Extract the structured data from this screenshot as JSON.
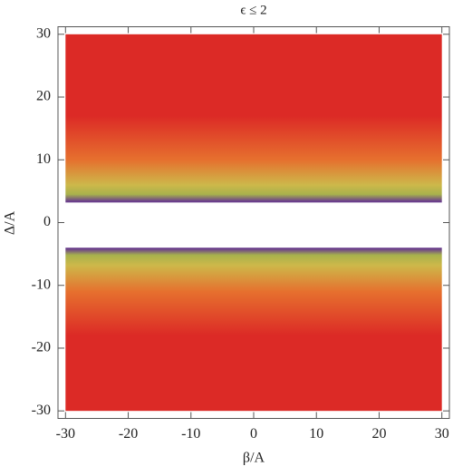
{
  "chart_data": {
    "type": "region",
    "title": "ϵ ≤ 2",
    "x_label": "β/A",
    "y_label": "Δ/A",
    "xlim": [
      -31.2,
      31.2
    ],
    "ylim": [
      -31.2,
      31.2
    ],
    "xticks": [
      -30,
      -20,
      -10,
      0,
      10,
      20,
      30
    ],
    "yticks": [
      -30,
      -20,
      -10,
      0,
      10,
      20,
      30
    ],
    "colors": [
      "#6a3e8c",
      "#a8b24c",
      "#cdb84a",
      "#e6702e",
      "#dc2a26"
    ],
    "regions": [
      {
        "xlim": [
          -30,
          30
        ],
        "ylim": [
          3.2,
          30
        ],
        "levels": [
          3.4,
          4.5,
          6,
          10,
          17
        ]
      },
      {
        "xlim": [
          -30,
          30
        ],
        "ylim": [
          -30,
          -4
        ],
        "levels": [
          -4.2,
          -5.2,
          -6.8,
          -11,
          -18
        ]
      }
    ]
  }
}
